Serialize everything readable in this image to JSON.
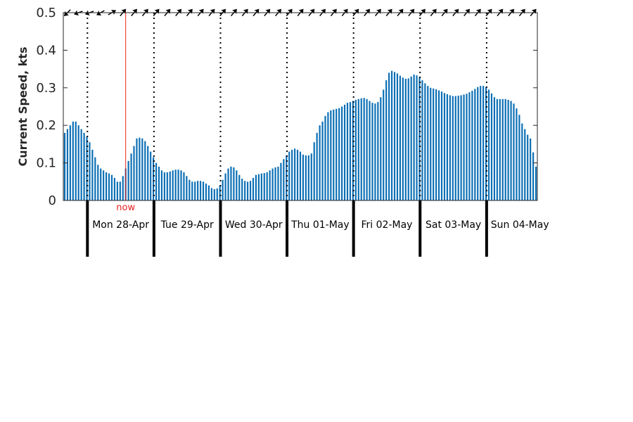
{
  "chart_data": {
    "type": "bar",
    "title": "",
    "xlabel": "",
    "ylabel": "Current Speed, kts",
    "ylim": [
      0,
      0.5
    ],
    "yticks": [
      "0",
      "0.1",
      "0.2",
      "0.3",
      "0.4",
      "0.5"
    ],
    "grid": false,
    "bar_color": "#0a6eb4",
    "now_color": "#e8231f",
    "now_label": "now",
    "now_index": 22,
    "interval_hours": 1,
    "days": [
      "Mon 28-Apr",
      "Tue 29-Apr",
      "Wed 30-Apr",
      "Thu 01-May",
      "Fri 02-May",
      "Sat 03-May",
      "Sun 04-May"
    ],
    "first_midnight_index": 8,
    "values": [
      0.18,
      0.19,
      0.2,
      0.21,
      0.21,
      0.2,
      0.19,
      0.18,
      0.17,
      0.155,
      0.135,
      0.115,
      0.095,
      0.085,
      0.08,
      0.075,
      0.072,
      0.068,
      0.06,
      0.05,
      0.05,
      0.065,
      0.085,
      0.105,
      0.125,
      0.145,
      0.165,
      0.167,
      0.165,
      0.158,
      0.145,
      0.13,
      0.115,
      0.1,
      0.09,
      0.08,
      0.075,
      0.075,
      0.077,
      0.08,
      0.082,
      0.082,
      0.08,
      0.075,
      0.065,
      0.055,
      0.05,
      0.05,
      0.052,
      0.052,
      0.05,
      0.045,
      0.04,
      0.033,
      0.03,
      0.032,
      0.04,
      0.055,
      0.072,
      0.085,
      0.09,
      0.088,
      0.08,
      0.068,
      0.058,
      0.052,
      0.05,
      0.052,
      0.06,
      0.068,
      0.07,
      0.072,
      0.073,
      0.075,
      0.08,
      0.085,
      0.088,
      0.09,
      0.1,
      0.11,
      0.12,
      0.13,
      0.135,
      0.138,
      0.135,
      0.13,
      0.122,
      0.12,
      0.12,
      0.125,
      0.155,
      0.18,
      0.2,
      0.21,
      0.225,
      0.235,
      0.24,
      0.242,
      0.244,
      0.246,
      0.25,
      0.255,
      0.26,
      0.262,
      0.265,
      0.268,
      0.27,
      0.272,
      0.273,
      0.27,
      0.265,
      0.26,
      0.258,
      0.262,
      0.275,
      0.295,
      0.32,
      0.34,
      0.345,
      0.342,
      0.338,
      0.332,
      0.327,
      0.324,
      0.325,
      0.33,
      0.335,
      0.333,
      0.328,
      0.32,
      0.312,
      0.305,
      0.3,
      0.298,
      0.296,
      0.293,
      0.29,
      0.286,
      0.283,
      0.28,
      0.278,
      0.278,
      0.279,
      0.28,
      0.282,
      0.284,
      0.288,
      0.292,
      0.297,
      0.302,
      0.305,
      0.305,
      0.302,
      0.295,
      0.285,
      0.275,
      0.27,
      0.27,
      0.27,
      0.27,
      0.268,
      0.265,
      0.258,
      0.245,
      0.228,
      0.205,
      0.19,
      0.175,
      0.165,
      0.128,
      0.09
    ],
    "direction_arrows_deg": [
      225,
      250,
      250,
      250,
      250,
      250,
      225,
      250,
      250,
      250,
      250,
      250,
      240,
      160,
      90,
      60,
      60,
      60,
      60,
      60,
      40,
      40,
      40,
      40,
      40,
      40,
      40,
      40,
      40,
      40,
      40,
      40,
      40,
      40,
      40,
      40,
      40,
      40,
      40,
      40,
      40,
      40,
      40,
      40,
      40,
      40,
      40,
      40,
      40,
      40,
      40,
      40,
      40,
      40,
      40,
      40,
      40,
      40,
      40,
      40,
      40,
      40,
      40,
      40,
      40,
      40,
      40,
      40,
      40,
      40,
      40,
      40,
      40,
      40,
      40,
      40,
      40,
      40,
      40,
      40,
      40,
      40,
      40,
      40,
      40,
      40,
      40,
      40,
      40,
      40,
      40,
      40,
      40,
      40,
      40,
      40,
      40,
      40,
      40,
      40,
      40,
      40,
      40,
      40,
      40,
      40,
      40,
      40,
      40,
      40,
      40,
      40,
      40,
      40,
      40,
      40,
      40,
      40,
      40,
      40,
      40,
      40,
      40,
      40,
      40,
      40,
      40,
      40,
      40,
      40,
      40,
      40,
      40,
      40,
      40,
      40,
      40,
      40,
      40,
      40,
      40,
      40,
      40,
      40,
      40,
      40,
      40,
      40,
      40,
      40,
      40,
      40,
      40,
      40,
      40,
      40,
      40,
      40,
      40,
      40,
      40,
      40,
      40,
      40,
      40,
      40,
      40,
      40,
      40,
      40
    ]
  }
}
